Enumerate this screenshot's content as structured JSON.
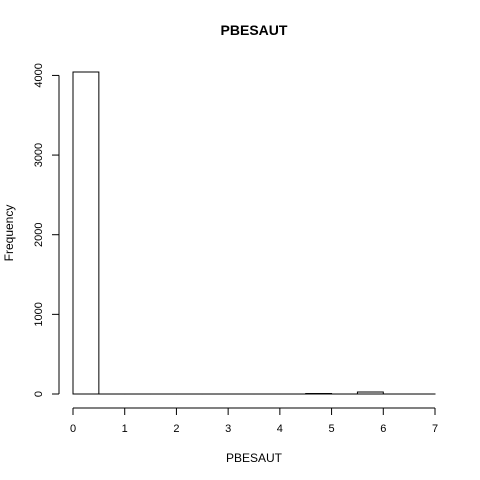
{
  "chart_data": {
    "type": "bar",
    "title": "PBESAUT",
    "xlabel": "PBESAUT",
    "ylabel": "Frequency",
    "bin_edges": [
      0,
      0.5,
      1,
      1.5,
      2,
      2.5,
      3,
      3.5,
      4,
      4.5,
      5,
      5.5,
      6,
      6.5,
      7
    ],
    "values": [
      4043,
      0,
      0,
      0,
      0,
      0,
      0,
      0,
      0,
      6,
      0,
      25,
      0,
      0
    ],
    "xlim": [
      0,
      7
    ],
    "ylim": [
      0,
      4043
    ],
    "x_ticks": [
      0,
      1,
      2,
      3,
      4,
      5,
      6,
      7
    ],
    "y_ticks": [
      0,
      1000,
      2000,
      3000,
      4000
    ],
    "grid": false
  }
}
